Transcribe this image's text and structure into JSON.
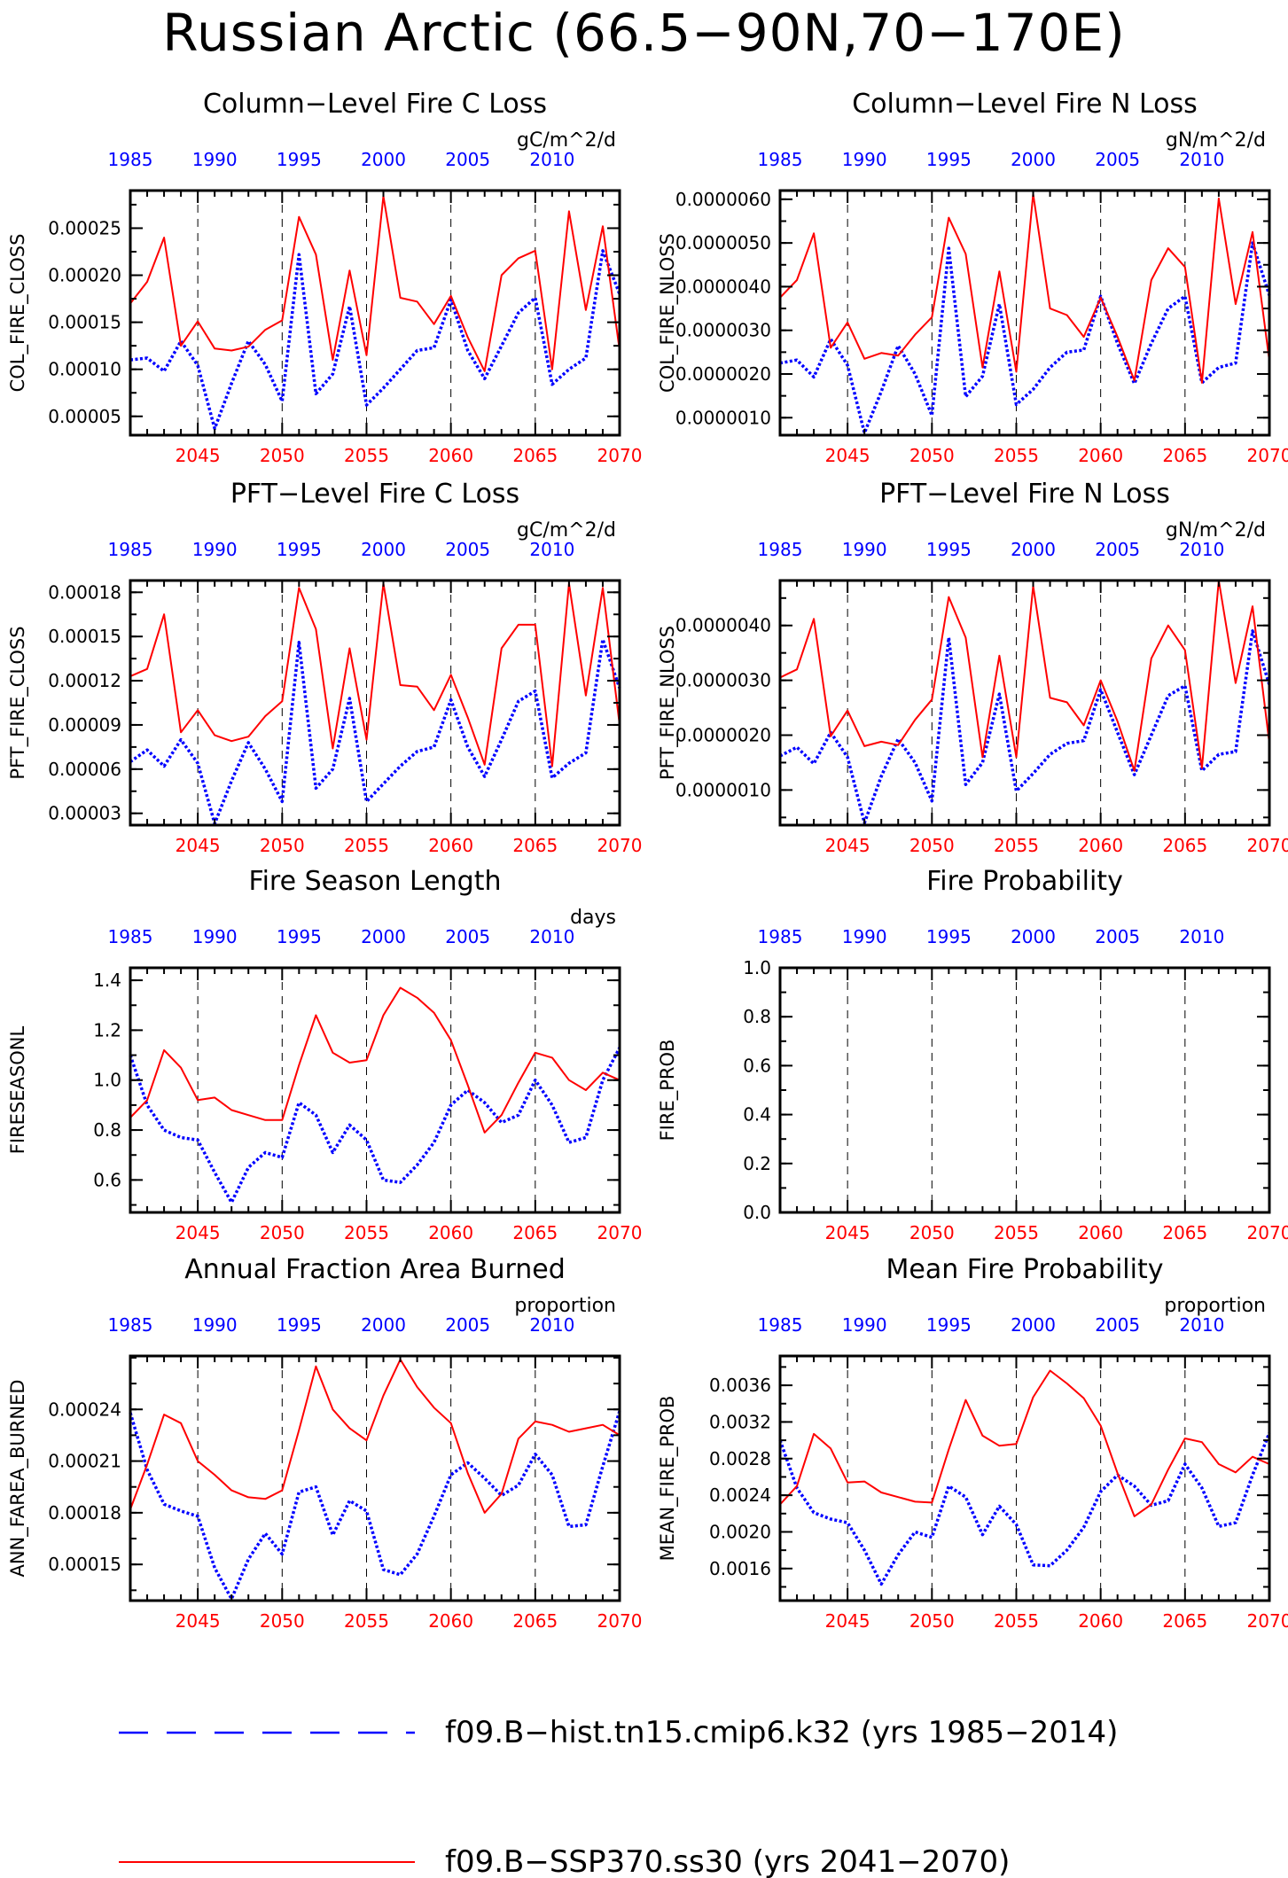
{
  "title": "Russian Arctic (66.5−90N,70−170E)",
  "colors": {
    "hist": "#0000ff",
    "ssp": "#ff0000",
    "axis": "#000000"
  },
  "top_axis_ticks": [
    "1985",
    "1990",
    "1995",
    "2000",
    "2005",
    "2010"
  ],
  "bottom_axis_ticks": [
    "2045",
    "2050",
    "2055",
    "2060",
    "2065",
    "2070"
  ],
  "legend": [
    {
      "label": "f09.B−hist.tn15.cmip6.k32 (yrs 1985−2014)",
      "style": "dashed",
      "color": "#0000ff"
    },
    {
      "label": "f09.B−SSP370.ss30 (yrs 2041−2070)",
      "style": "solid",
      "color": "#ff0000"
    }
  ],
  "chart_data": [
    {
      "type": "line",
      "title": "Column−Level Fire C Loss",
      "units": "gC/m^2/d",
      "ylabel": "COL_FIRE_CLOSS",
      "ylim": [
        3e-05,
        0.00029
      ],
      "yticks": [
        5e-05,
        0.0001,
        0.00015,
        0.0002,
        0.00025
      ],
      "yticklabels": [
        "0.00005",
        "0.00010",
        "0.00015",
        "0.00020",
        "0.00025"
      ],
      "x": [
        2041,
        2042,
        2043,
        2044,
        2045,
        2046,
        2047,
        2048,
        2049,
        2050,
        2051,
        2052,
        2053,
        2054,
        2055,
        2056,
        2057,
        2058,
        2059,
        2060,
        2061,
        2062,
        2063,
        2064,
        2065,
        2066,
        2067,
        2068,
        2069,
        2070
      ],
      "series": [
        {
          "key": "hist",
          "values": [
            0.00011,
            0.000112,
            9.8e-05,
            0.00013,
            0.000104,
            3.7e-05,
            8.5e-05,
            0.00013,
            0.000105,
            6.6e-05,
            0.000222,
            7.4e-05,
            9.5e-05,
            0.000167,
            6.2e-05,
            8e-05,
            0.0001,
            0.00012,
            0.000123,
            0.000174,
            0.00012,
            9e-05,
            0.000125,
            0.00016,
            0.000176,
            8.4e-05,
            0.0001,
            0.000112,
            0.000226,
            0.00018
          ]
        },
        {
          "key": "ssp",
          "values": [
            0.00017,
            0.000193,
            0.00024,
            0.000125,
            0.000151,
            0.000122,
            0.00012,
            0.000124,
            0.000142,
            0.000152,
            0.000262,
            0.000222,
            0.00011,
            0.000205,
            0.000115,
            0.000284,
            0.000176,
            0.000172,
            0.000148,
            0.000178,
            0.000134,
            9.8e-05,
            0.0002,
            0.000218,
            0.000226,
            0.0001,
            0.000268,
            0.000163,
            0.000252,
            0.00012
          ]
        }
      ]
    },
    {
      "type": "line",
      "title": "Column−Level Fire N Loss",
      "units": "gN/m^2/d",
      "ylabel": "COL_FIRE_NLOSS",
      "ylim": [
        6e-07,
        6.2e-06
      ],
      "yticks": [
        1e-06,
        2e-06,
        3e-06,
        4e-06,
        5e-06,
        6e-06
      ],
      "yticklabels": [
        "0.0000010",
        "0.0000020",
        "0.0000030",
        "0.0000040",
        "0.0000050",
        "0.0000060"
      ],
      "x": [
        2041,
        2042,
        2043,
        2044,
        2045,
        2046,
        2047,
        2048,
        2049,
        2050,
        2051,
        2052,
        2053,
        2054,
        2055,
        2056,
        2057,
        2058,
        2059,
        2060,
        2061,
        2062,
        2063,
        2064,
        2065,
        2066,
        2067,
        2068,
        2069,
        2070
      ],
      "series": [
        {
          "key": "hist",
          "values": [
            2.25e-06,
            2.32e-06,
            1.93e-06,
            2.8e-06,
            2.2e-06,
            6.5e-07,
            1.6e-06,
            2.65e-06,
            2e-06,
            1.05e-06,
            4.88e-06,
            1.48e-06,
            1.95e-06,
            3.6e-06,
            1.3e-06,
            1.65e-06,
            2.15e-06,
            2.5e-06,
            2.55e-06,
            3.78e-06,
            2.7e-06,
            1.78e-06,
            2.7e-06,
            3.5e-06,
            3.78e-06,
            1.8e-06,
            2.15e-06,
            2.25e-06,
            5e-06,
            3.8e-06
          ]
        },
        {
          "key": "ssp",
          "values": [
            3.75e-06,
            4.15e-06,
            5.22e-06,
            2.6e-06,
            3.18e-06,
            2.35e-06,
            2.48e-06,
            2.42e-06,
            2.9e-06,
            3.3e-06,
            5.58e-06,
            4.75e-06,
            2.15e-06,
            4.35e-06,
            2.05e-06,
            6.12e-06,
            3.5e-06,
            3.35e-06,
            2.85e-06,
            3.75e-06,
            2.85e-06,
            1.85e-06,
            4.15e-06,
            4.88e-06,
            4.45e-06,
            1.8e-06,
            6.02e-06,
            3.6e-06,
            5.25e-06,
            2.3e-06
          ]
        }
      ]
    },
    {
      "type": "line",
      "title": "PFT−Level Fire C Loss",
      "units": "gC/m^2/d",
      "ylabel": "PFT_FIRE_CLOSS",
      "ylim": [
        2.2e-05,
        0.000188
      ],
      "yticks": [
        3e-05,
        6e-05,
        9e-05,
        0.00012,
        0.00015,
        0.00018
      ],
      "yticklabels": [
        "0.00003",
        "0.00006",
        "0.00009",
        "0.00012",
        "0.00015",
        "0.00018"
      ],
      "x": [
        2041,
        2042,
        2043,
        2044,
        2045,
        2046,
        2047,
        2048,
        2049,
        2050,
        2051,
        2052,
        2053,
        2054,
        2055,
        2056,
        2057,
        2058,
        2059,
        2060,
        2061,
        2062,
        2063,
        2064,
        2065,
        2066,
        2067,
        2068,
        2069,
        2070
      ],
      "series": [
        {
          "key": "hist",
          "values": [
            6.5e-05,
            7.3e-05,
            6.2e-05,
            8e-05,
            6.4e-05,
            2.3e-05,
            5.2e-05,
            7.8e-05,
            6e-05,
            3.8e-05,
            0.000146,
            4.7e-05,
            6e-05,
            0.000108,
            3.8e-05,
            5e-05,
            6.2e-05,
            7.2e-05,
            7.5e-05,
            0.000107,
            7.5e-05,
            5.5e-05,
            8e-05,
            0.000106,
            0.000113,
            5.4e-05,
            6.4e-05,
            7.1e-05,
            0.000148,
            0.000115
          ]
        },
        {
          "key": "ssp",
          "values": [
            0.000123,
            0.000128,
            0.000165,
            8.5e-05,
            0.0001,
            8.3e-05,
            7.9e-05,
            8.2e-05,
            9.6e-05,
            0.000106,
            0.000183,
            0.000155,
            7.4e-05,
            0.000142,
            8e-05,
            0.000186,
            0.000117,
            0.000116,
            0.0001,
            0.000124,
            9.5e-05,
            6.3e-05,
            0.000142,
            0.000158,
            0.000158,
            6.2e-05,
            0.000186,
            0.00011,
            0.000183,
            9e-05
          ]
        }
      ]
    },
    {
      "type": "line",
      "title": "PFT−Level Fire N Loss",
      "units": "gN/m^2/d",
      "ylabel": "PFT_FIRE_NLOSS",
      "ylim": [
        3.6e-07,
        4.82e-06
      ],
      "yticks": [
        1e-06,
        2e-06,
        3e-06,
        4e-06
      ],
      "yticklabels": [
        "0.0000010",
        "0.0000020",
        "0.0000030",
        "0.0000040"
      ],
      "x": [
        2041,
        2042,
        2043,
        2044,
        2045,
        2046,
        2047,
        2048,
        2049,
        2050,
        2051,
        2052,
        2053,
        2054,
        2055,
        2056,
        2057,
        2058,
        2059,
        2060,
        2061,
        2062,
        2063,
        2064,
        2065,
        2066,
        2067,
        2068,
        2069,
        2070
      ],
      "series": [
        {
          "key": "hist",
          "values": [
            1.62e-06,
            1.78e-06,
            1.48e-06,
            2.05e-06,
            1.6e-06,
            4e-07,
            1.25e-06,
            1.93e-06,
            1.5e-06,
            8e-07,
            3.78e-06,
            1.1e-06,
            1.5e-06,
            2.75e-06,
            9.8e-07,
            1.3e-06,
            1.65e-06,
            1.85e-06,
            1.9e-06,
            2.83e-06,
            2.05e-06,
            1.28e-06,
            2e-06,
            2.72e-06,
            2.9e-06,
            1.35e-06,
            1.65e-06,
            1.7e-06,
            3.9e-06,
            2.92e-06
          ]
        },
        {
          "key": "ssp",
          "values": [
            3.05e-06,
            3.2e-06,
            4.12e-06,
            1.98e-06,
            2.45e-06,
            1.8e-06,
            1.88e-06,
            1.82e-06,
            2.28e-06,
            2.65e-06,
            4.52e-06,
            3.78e-06,
            1.6e-06,
            3.45e-06,
            1.6e-06,
            4.72e-06,
            2.68e-06,
            2.6e-06,
            2.18e-06,
            3e-06,
            2.25e-06,
            1.35e-06,
            3.4e-06,
            4e-06,
            3.55e-06,
            1.4e-06,
            4.82e-06,
            2.95e-06,
            4.35e-06,
            1.85e-06
          ]
        }
      ]
    },
    {
      "type": "line",
      "title": "Fire Season Length",
      "units": "days",
      "ylabel": "FIRESEASONL",
      "ylim": [
        0.47,
        1.45
      ],
      "yticks": [
        0.6,
        0.8,
        1.0,
        1.2,
        1.4
      ],
      "yticklabels": [
        "0.6",
        "0.8",
        "1.0",
        "1.2",
        "1.4"
      ],
      "x": [
        2041,
        2042,
        2043,
        2044,
        2045,
        2046,
        2047,
        2048,
        2049,
        2050,
        2051,
        2052,
        2053,
        2054,
        2055,
        2056,
        2057,
        2058,
        2059,
        2060,
        2061,
        2062,
        2063,
        2064,
        2065,
        2066,
        2067,
        2068,
        2069,
        2070
      ],
      "series": [
        {
          "key": "hist",
          "values": [
            1.1,
            0.9,
            0.8,
            0.77,
            0.76,
            0.63,
            0.51,
            0.65,
            0.71,
            0.69,
            0.91,
            0.86,
            0.71,
            0.82,
            0.76,
            0.6,
            0.59,
            0.66,
            0.75,
            0.9,
            0.96,
            0.91,
            0.83,
            0.86,
            1.0,
            0.9,
            0.75,
            0.77,
            1.0,
            1.13
          ]
        },
        {
          "key": "ssp",
          "values": [
            0.85,
            0.92,
            1.12,
            1.05,
            0.92,
            0.93,
            0.88,
            0.86,
            0.84,
            0.84,
            1.06,
            1.26,
            1.11,
            1.07,
            1.08,
            1.26,
            1.37,
            1.33,
            1.27,
            1.16,
            0.98,
            0.79,
            0.86,
            0.99,
            1.11,
            1.09,
            1.0,
            0.96,
            1.03,
            1.0
          ]
        }
      ]
    },
    {
      "type": "line",
      "title": "Fire Probability",
      "units": "",
      "ylabel": "FIRE_PROB",
      "ylim": [
        0.0,
        1.0
      ],
      "yticks": [
        0.0,
        0.2,
        0.4,
        0.6,
        0.8,
        1.0
      ],
      "yticklabels": [
        "0.0",
        "0.2",
        "0.4",
        "0.6",
        "0.8",
        "1.0"
      ],
      "x": [],
      "series": []
    },
    {
      "type": "line",
      "title": "Annual Fraction Area Burned",
      "units": "proportion",
      "ylabel": "ANN_FAREA_BURNED",
      "ylim": [
        0.000129,
        0.000271
      ],
      "yticks": [
        0.00015,
        0.00018,
        0.00021,
        0.00024
      ],
      "yticklabels": [
        "0.00015",
        "0.00018",
        "0.00021",
        "0.00024"
      ],
      "x": [
        2041,
        2042,
        2043,
        2044,
        2045,
        2046,
        2047,
        2048,
        2049,
        2050,
        2051,
        2052,
        2053,
        2054,
        2055,
        2056,
        2057,
        2058,
        2059,
        2060,
        2061,
        2062,
        2063,
        2064,
        2065,
        2066,
        2067,
        2068,
        2069,
        2070
      ],
      "series": [
        {
          "key": "hist",
          "values": [
            0.000238,
            0.000205,
            0.000185,
            0.000181,
            0.000178,
            0.000148,
            0.00013,
            0.000153,
            0.000168,
            0.000156,
            0.000192,
            0.000195,
            0.000167,
            0.000187,
            0.000181,
            0.000147,
            0.000144,
            0.000156,
            0.000178,
            0.000202,
            0.000209,
            0.0002,
            0.00019,
            0.000196,
            0.000214,
            0.000202,
            0.000172,
            0.000173,
            0.000207,
            0.000239
          ]
        },
        {
          "key": "ssp",
          "values": [
            0.000182,
            0.000208,
            0.000237,
            0.000232,
            0.00021,
            0.000202,
            0.000193,
            0.000189,
            0.000188,
            0.000193,
            0.000228,
            0.000265,
            0.00024,
            0.000229,
            0.000222,
            0.000248,
            0.000269,
            0.000253,
            0.000241,
            0.000232,
            0.000203,
            0.00018,
            0.000191,
            0.000223,
            0.000233,
            0.000231,
            0.000227,
            0.000229,
            0.000231,
            0.000225
          ]
        }
      ]
    },
    {
      "type": "line",
      "title": "Mean Fire Probability",
      "units": "proportion",
      "ylabel": "MEAN_FIRE_PROB",
      "ylim": [
        0.00125,
        0.00392
      ],
      "yticks": [
        0.0016,
        0.002,
        0.0024,
        0.0028,
        0.0032,
        0.0036
      ],
      "yticklabels": [
        "0.0016",
        "0.0020",
        "0.0024",
        "0.0028",
        "0.0032",
        "0.0036"
      ],
      "x": [
        2041,
        2042,
        2043,
        2044,
        2045,
        2046,
        2047,
        2048,
        2049,
        2050,
        2051,
        2052,
        2053,
        2054,
        2055,
        2056,
        2057,
        2058,
        2059,
        2060,
        2061,
        2062,
        2063,
        2064,
        2065,
        2066,
        2067,
        2068,
        2069,
        2070
      ],
      "series": [
        {
          "key": "hist",
          "values": [
            0.003,
            0.00248,
            0.00221,
            0.00214,
            0.0021,
            0.0018,
            0.00143,
            0.00175,
            0.002,
            0.00194,
            0.0025,
            0.00238,
            0.00197,
            0.00228,
            0.00208,
            0.00164,
            0.00163,
            0.0018,
            0.00205,
            0.00244,
            0.00262,
            0.0025,
            0.00229,
            0.00234,
            0.00274,
            0.00248,
            0.00206,
            0.0021,
            0.00262,
            0.00308
          ]
        },
        {
          "key": "ssp",
          "values": [
            0.0023,
            0.0025,
            0.00307,
            0.00291,
            0.00254,
            0.00255,
            0.00243,
            0.00238,
            0.00233,
            0.00232,
            0.0029,
            0.00344,
            0.00305,
            0.00294,
            0.00296,
            0.00347,
            0.00376,
            0.00362,
            0.00346,
            0.00316,
            0.00264,
            0.00217,
            0.0023,
            0.00268,
            0.00302,
            0.00298,
            0.00274,
            0.00265,
            0.00282,
            0.00274
          ]
        }
      ]
    }
  ]
}
